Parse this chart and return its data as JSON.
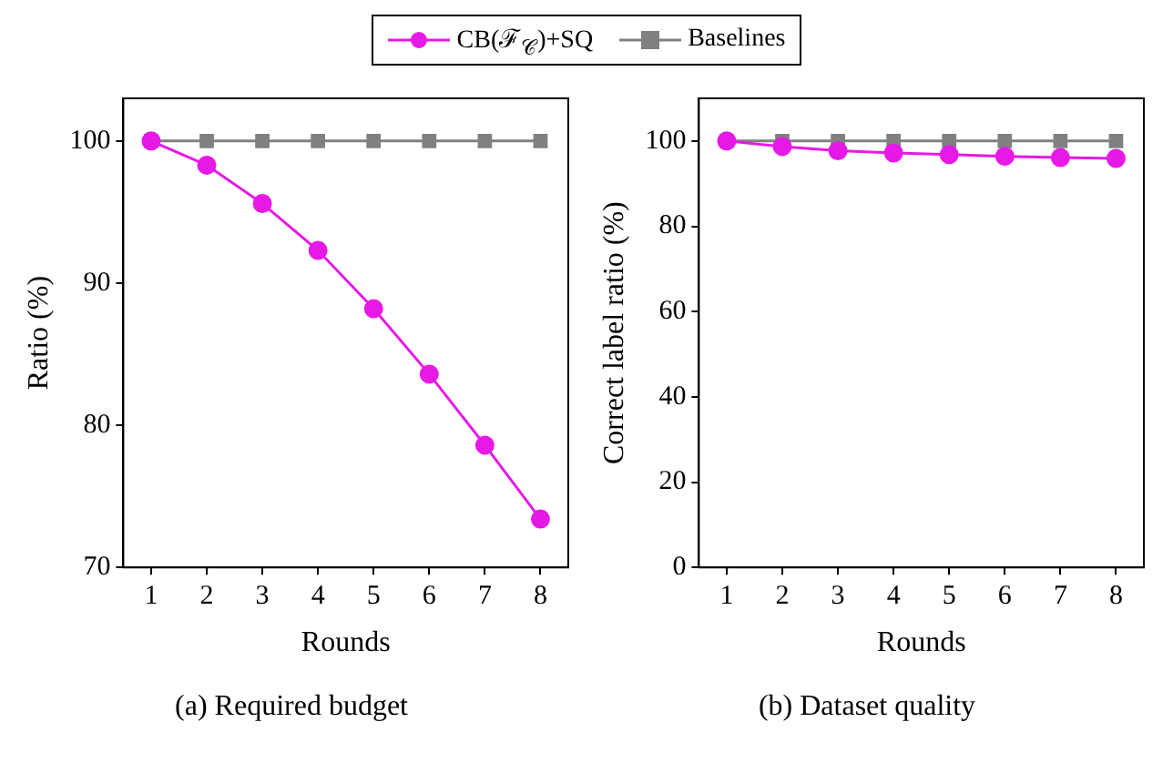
{
  "chart_data": [
    {
      "type": "line",
      "title": "(a) Required budget",
      "xlabel": "Rounds",
      "ylabel": "Ratio (%)",
      "x": [
        1,
        2,
        3,
        4,
        5,
        6,
        7,
        8
      ],
      "xlim": [
        0.5,
        8.5
      ],
      "xticks": [
        1,
        2,
        3,
        4,
        5,
        6,
        7,
        8
      ],
      "ylim": [
        70,
        103
      ],
      "yticks": [
        70,
        80,
        90,
        100
      ],
      "grid": false,
      "legend": "top",
      "series": [
        {
          "name": "CB(ℱ$_{𝒞}$)+SQ",
          "color": "#e619e6",
          "marker": "circle",
          "values": [
            100,
            98.3,
            95.6,
            92.3,
            88.2,
            83.6,
            78.6,
            73.4
          ]
        },
        {
          "name": "Baselines",
          "color": "#808080",
          "marker": "square",
          "values": [
            100,
            100,
            100,
            100,
            100,
            100,
            100,
            100
          ]
        }
      ]
    },
    {
      "type": "line",
      "title": "(b) Dataset quality",
      "xlabel": "Rounds",
      "ylabel": "Correct label ratio (%)",
      "x": [
        1,
        2,
        3,
        4,
        5,
        6,
        7,
        8
      ],
      "xlim": [
        0.5,
        8.5
      ],
      "xticks": [
        1,
        2,
        3,
        4,
        5,
        6,
        7,
        8
      ],
      "ylim": [
        0,
        110
      ],
      "yticks": [
        0,
        20,
        40,
        60,
        80,
        100
      ],
      "grid": false,
      "legend": "top",
      "series": [
        {
          "name": "CB(ℱ$_{𝒞}$)+SQ",
          "color": "#e619e6",
          "marker": "circle",
          "values": [
            100,
            98.7,
            97.7,
            97.2,
            96.8,
            96.4,
            96.1,
            95.9
          ]
        },
        {
          "name": "Baselines",
          "color": "#808080",
          "marker": "square",
          "values": [
            100,
            100,
            100,
            100,
            100,
            100,
            100,
            100
          ]
        }
      ]
    }
  ]
}
